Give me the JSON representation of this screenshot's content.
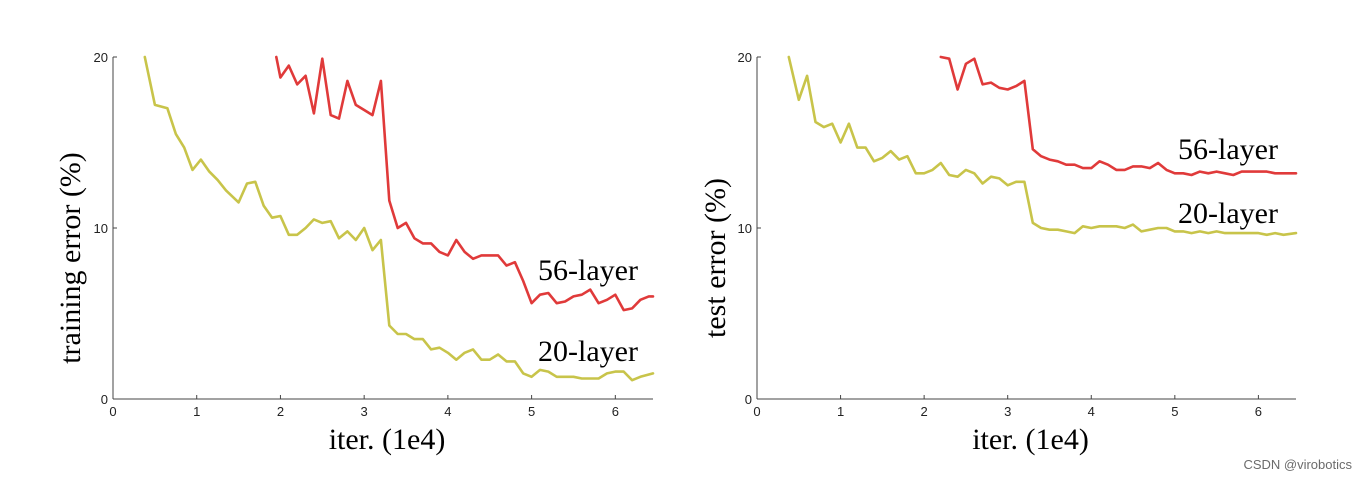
{
  "chart_data": [
    {
      "type": "line",
      "title": "",
      "xlabel": "iter. (1e4)",
      "ylabel": "training error (%)",
      "xlim": [
        0,
        6.45
      ],
      "ylim": [
        0,
        20
      ],
      "xticks": [
        "0",
        "1",
        "2",
        "3",
        "4",
        "5",
        "6"
      ],
      "yticks": [
        "0",
        "10",
        "20"
      ],
      "grid": false,
      "series": [
        {
          "name": "56-layer",
          "color": "#e03a3a",
          "x": [
            1.95,
            2.0,
            2.1,
            2.2,
            2.3,
            2.4,
            2.5,
            2.6,
            2.7,
            2.8,
            2.9,
            3.0,
            3.1,
            3.2,
            3.3,
            3.4,
            3.5,
            3.6,
            3.7,
            3.8,
            3.9,
            4.0,
            4.1,
            4.2,
            4.3,
            4.4,
            4.5,
            4.6,
            4.7,
            4.8,
            4.9,
            5.0,
            5.1,
            5.2,
            5.3,
            5.4,
            5.5,
            5.6,
            5.7,
            5.8,
            5.9,
            6.0,
            6.1,
            6.2,
            6.3,
            6.4,
            6.45
          ],
          "y": [
            20.0,
            18.8,
            19.5,
            18.4,
            18.9,
            16.7,
            19.9,
            16.6,
            16.4,
            18.6,
            17.2,
            16.9,
            16.6,
            18.6,
            11.6,
            10.0,
            10.3,
            9.4,
            9.1,
            9.1,
            8.6,
            8.4,
            9.3,
            8.6,
            8.2,
            8.4,
            8.4,
            8.4,
            7.8,
            8.0,
            6.9,
            5.6,
            6.1,
            6.2,
            5.6,
            5.7,
            6.0,
            6.1,
            6.4,
            5.6,
            5.8,
            6.1,
            5.2,
            5.3,
            5.8,
            6.0,
            6.0
          ]
        },
        {
          "name": "20-layer",
          "color": "#c8c44a",
          "x": [
            0.38,
            0.5,
            0.65,
            0.75,
            0.85,
            0.95,
            1.05,
            1.15,
            1.25,
            1.35,
            1.5,
            1.6,
            1.7,
            1.8,
            1.9,
            2.0,
            2.1,
            2.2,
            2.3,
            2.4,
            2.5,
            2.6,
            2.7,
            2.8,
            2.9,
            3.0,
            3.1,
            3.2,
            3.3,
            3.4,
            3.5,
            3.6,
            3.7,
            3.8,
            3.9,
            4.0,
            4.1,
            4.2,
            4.3,
            4.4,
            4.5,
            4.6,
            4.7,
            4.8,
            4.9,
            5.0,
            5.1,
            5.2,
            5.3,
            5.4,
            5.5,
            5.6,
            5.7,
            5.8,
            5.9,
            6.0,
            6.1,
            6.2,
            6.3,
            6.45
          ],
          "y": [
            20.0,
            17.2,
            17.0,
            15.5,
            14.7,
            13.4,
            14.0,
            13.3,
            12.8,
            12.2,
            11.5,
            12.6,
            12.7,
            11.3,
            10.6,
            10.7,
            9.6,
            9.6,
            10.0,
            10.5,
            10.3,
            10.4,
            9.4,
            9.8,
            9.3,
            10.0,
            8.7,
            9.3,
            4.3,
            3.8,
            3.8,
            3.5,
            3.5,
            2.9,
            3.0,
            2.7,
            2.3,
            2.7,
            2.9,
            2.3,
            2.3,
            2.6,
            2.2,
            2.2,
            1.5,
            1.3,
            1.7,
            1.6,
            1.3,
            1.3,
            1.3,
            1.2,
            1.2,
            1.2,
            1.5,
            1.6,
            1.6,
            1.1,
            1.3,
            1.5
          ]
        }
      ]
    },
    {
      "type": "line",
      "title": "",
      "xlabel": "iter. (1e4)",
      "ylabel": "test error (%)",
      "xlim": [
        0,
        6.45
      ],
      "ylim": [
        0,
        20
      ],
      "xticks": [
        "0",
        "1",
        "2",
        "3",
        "4",
        "5",
        "6"
      ],
      "yticks": [
        "0",
        "10",
        "20"
      ],
      "grid": false,
      "series": [
        {
          "name": "56-layer",
          "color": "#e03a3a",
          "x": [
            2.2,
            2.3,
            2.4,
            2.5,
            2.6,
            2.7,
            2.8,
            2.9,
            3.0,
            3.1,
            3.2,
            3.3,
            3.4,
            3.5,
            3.6,
            3.7,
            3.8,
            3.9,
            4.0,
            4.1,
            4.2,
            4.3,
            4.4,
            4.5,
            4.6,
            4.7,
            4.8,
            4.9,
            5.0,
            5.1,
            5.2,
            5.3,
            5.4,
            5.5,
            5.6,
            5.7,
            5.8,
            5.9,
            6.0,
            6.1,
            6.2,
            6.3,
            6.45
          ],
          "y": [
            20.0,
            19.9,
            18.1,
            19.6,
            19.9,
            18.4,
            18.5,
            18.2,
            18.1,
            18.3,
            18.6,
            14.6,
            14.2,
            14.0,
            13.9,
            13.7,
            13.7,
            13.5,
            13.5,
            13.9,
            13.7,
            13.4,
            13.4,
            13.6,
            13.6,
            13.5,
            13.8,
            13.4,
            13.2,
            13.2,
            13.1,
            13.3,
            13.2,
            13.3,
            13.2,
            13.1,
            13.3,
            13.3,
            13.3,
            13.3,
            13.2,
            13.2,
            13.2
          ]
        },
        {
          "name": "20-layer",
          "color": "#c8c44a",
          "x": [
            0.38,
            0.5,
            0.6,
            0.7,
            0.8,
            0.9,
            1.0,
            1.1,
            1.2,
            1.3,
            1.4,
            1.5,
            1.6,
            1.7,
            1.8,
            1.9,
            2.0,
            2.1,
            2.2,
            2.3,
            2.4,
            2.5,
            2.6,
            2.7,
            2.8,
            2.9,
            3.0,
            3.1,
            3.2,
            3.3,
            3.4,
            3.5,
            3.6,
            3.7,
            3.8,
            3.9,
            4.0,
            4.1,
            4.2,
            4.3,
            4.4,
            4.5,
            4.6,
            4.7,
            4.8,
            4.9,
            5.0,
            5.1,
            5.2,
            5.3,
            5.4,
            5.5,
            5.6,
            5.7,
            5.8,
            5.9,
            6.0,
            6.1,
            6.2,
            6.3,
            6.45
          ],
          "y": [
            20.0,
            17.5,
            18.9,
            16.2,
            15.9,
            16.1,
            15.0,
            16.1,
            14.7,
            14.7,
            13.9,
            14.1,
            14.5,
            14.0,
            14.2,
            13.2,
            13.2,
            13.4,
            13.8,
            13.1,
            13.0,
            13.4,
            13.2,
            12.6,
            13.0,
            12.9,
            12.5,
            12.7,
            12.7,
            10.3,
            10.0,
            9.9,
            9.9,
            9.8,
            9.7,
            10.1,
            10.0,
            10.1,
            10.1,
            10.1,
            10.0,
            10.2,
            9.8,
            9.9,
            10.0,
            10.0,
            9.8,
            9.8,
            9.7,
            9.8,
            9.7,
            9.8,
            9.7,
            9.7,
            9.7,
            9.7,
            9.7,
            9.6,
            9.7,
            9.6,
            9.7
          ]
        }
      ]
    }
  ],
  "watermark": "CSDN @virobotics"
}
